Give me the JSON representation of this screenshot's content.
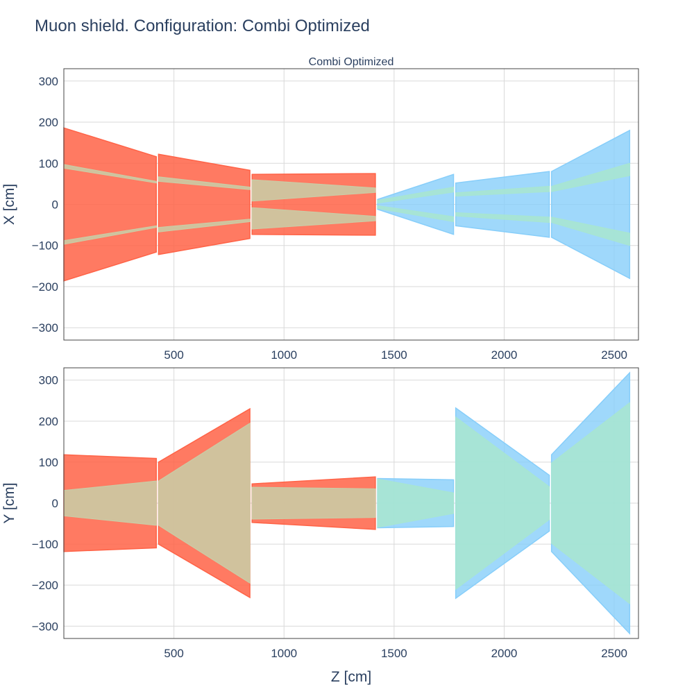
{
  "title": "Muon shield. Configuration: Combi Optimized",
  "colors": {
    "red_magnet": "#ff6347",
    "blue_magnet": "#87cefa",
    "red_gap": "#c8cfa8",
    "blue_gap": "#a8e6cf",
    "grid": "#d9d9d9",
    "text": "#2a3f5f"
  },
  "chart_data": [
    {
      "type": "area",
      "subtitle": "Combi Optimized",
      "xlabel": "",
      "ylabel": "X [cm]",
      "xlim": [
        0,
        2610
      ],
      "ylim": [
        -330,
        330
      ],
      "x_ticks": [
        500,
        1000,
        1500,
        2000,
        2500
      ],
      "x_tick_labels": [
        "500",
        "1000",
        "1500",
        "2000",
        "2500"
      ],
      "y_ticks": [
        300,
        200,
        100,
        0,
        -100,
        -200,
        -300
      ],
      "y_tick_labels": [
        "300",
        "200",
        "100",
        "0",
        "−100",
        "−200",
        "−300"
      ],
      "grid": true,
      "series": [
        {
          "color": "red",
          "z": [
            0,
            420
          ],
          "outer": [
            186,
            116
          ],
          "gap_outer": [
            97,
            56
          ],
          "gap_inner": [
            88,
            52
          ]
        },
        {
          "color": "red",
          "z": [
            430,
            845
          ],
          "outer": [
            122,
            83
          ],
          "gap_outer": [
            67,
            42
          ],
          "gap_inner": [
            56,
            36
          ]
        },
        {
          "color": "red",
          "z": [
            855,
            1415
          ],
          "outer": [
            73,
            75
          ],
          "gap_outer": [
            60,
            40
          ],
          "gap_inner": [
            8,
            29
          ]
        },
        {
          "color": "blue",
          "z": [
            1425,
            1770
          ],
          "outer": [
            12,
            73
          ],
          "gap_outer": [
            10,
            42
          ],
          "gap_inner": [
            3,
            30
          ]
        },
        {
          "color": "blue",
          "z": [
            1780,
            2205
          ],
          "outer": [
            52,
            80
          ],
          "gap_outer": [
            28,
            44
          ],
          "gap_inner": [
            20,
            31
          ]
        },
        {
          "color": "blue",
          "z": [
            2215,
            2570
          ],
          "outer": [
            80,
            180
          ],
          "gap_outer": [
            44,
            100
          ],
          "gap_inner": [
            31,
            70
          ]
        }
      ]
    },
    {
      "type": "area",
      "subtitle": "",
      "xlabel": "Z [cm]",
      "ylabel": "Y [cm]",
      "xlim": [
        0,
        2610
      ],
      "ylim": [
        -330,
        330
      ],
      "x_ticks": [
        500,
        1000,
        1500,
        2000,
        2500
      ],
      "x_tick_labels": [
        "500",
        "1000",
        "1500",
        "2000",
        "2500"
      ],
      "y_ticks": [
        300,
        200,
        100,
        0,
        -100,
        -200,
        -300
      ],
      "y_tick_labels": [
        "300",
        "200",
        "100",
        "0",
        "−100",
        "−200",
        "−300"
      ],
      "grid": true,
      "series": [
        {
          "color": "red",
          "z": [
            0,
            420
          ],
          "outer": [
            118,
            109
          ],
          "gap": [
            31,
            54
          ]
        },
        {
          "color": "red",
          "z": [
            430,
            845
          ],
          "outer": [
            100,
            230
          ],
          "gap": [
            54,
            195
          ]
        },
        {
          "color": "red",
          "z": [
            855,
            1415
          ],
          "outer": [
            47,
            64
          ],
          "gap": [
            39,
            35
          ]
        },
        {
          "color": "blue",
          "z": [
            1425,
            1770
          ],
          "outer": [
            60,
            57
          ],
          "gap": [
            59,
            25
          ]
        },
        {
          "color": "blue",
          "z": [
            1780,
            2205
          ],
          "outer": [
            232,
            68
          ],
          "gap": [
            210,
            40
          ]
        },
        {
          "color": "blue",
          "z": [
            2215,
            2570
          ],
          "outer": [
            118,
            318
          ],
          "gap": [
            98,
            245
          ]
        }
      ]
    }
  ]
}
